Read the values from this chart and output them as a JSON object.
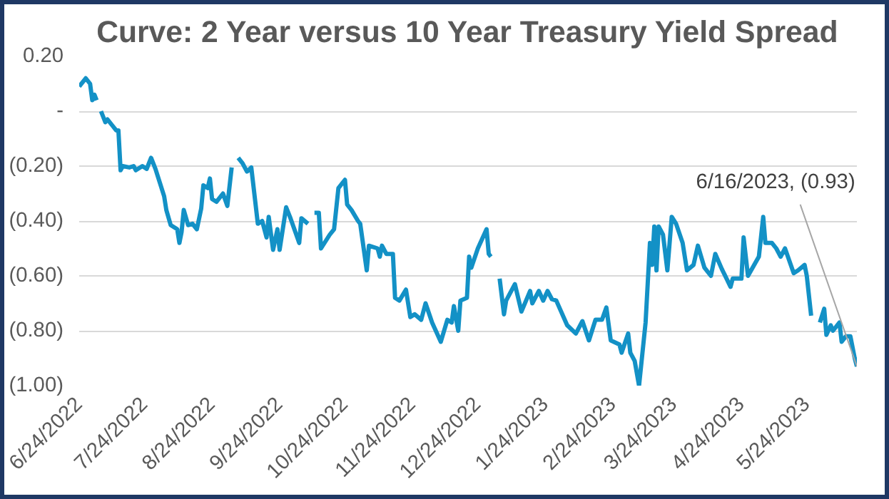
{
  "chart_data": {
    "type": "line",
    "title": "Curve: 2 Year versus 10 Year Treasury Yield Spread",
    "x": [
      "2022-06-24",
      "2022-06-27",
      "2022-06-29",
      "2022-06-30",
      "2022-07-01",
      "2022-07-02",
      "2022-07-03",
      "2022-07-04",
      "2022-07-06",
      "2022-07-07",
      "2022-07-09",
      "2022-07-11",
      "2022-07-12",
      "2022-07-13",
      "2022-07-14",
      "2022-07-17",
      "2022-07-19",
      "2022-07-20",
      "2022-07-23",
      "2022-07-25",
      "2022-07-27",
      "2022-07-29",
      "2022-08-02",
      "2022-08-03",
      "2022-08-05",
      "2022-08-08",
      "2022-08-09",
      "2022-08-10",
      "2022-08-11",
      "2022-08-13",
      "2022-08-15",
      "2022-08-17",
      "2022-08-19",
      "2022-08-20",
      "2022-08-22",
      "2022-08-23",
      "2022-08-24",
      "2022-08-26",
      "2022-08-29",
      "2022-08-31",
      "2022-09-02",
      "2022-09-03",
      "2022-09-05",
      "2022-09-07",
      "2022-09-09",
      "2022-09-11",
      "2022-09-14",
      "2022-09-16",
      "2022-09-18",
      "2022-09-19",
      "2022-09-21",
      "2022-09-23",
      "2022-09-24",
      "2022-09-27",
      "2022-09-29",
      "2022-10-03",
      "2022-10-04",
      "2022-10-07",
      "2022-10-08",
      "2022-10-10",
      "2022-10-12",
      "2022-10-13",
      "2022-10-17",
      "2022-10-19",
      "2022-10-21",
      "2022-10-24",
      "2022-10-25",
      "2022-10-27",
      "2022-10-30",
      "2022-10-31",
      "2022-11-03",
      "2022-11-04",
      "2022-11-08",
      "2022-11-09",
      "2022-11-10",
      "2022-11-12",
      "2022-11-15",
      "2022-11-16",
      "2022-11-18",
      "2022-11-21",
      "2022-11-23",
      "2022-11-25",
      "2022-11-28",
      "2022-11-30",
      "2022-12-03",
      "2022-12-07",
      "2022-12-10",
      "2022-12-12",
      "2022-12-13",
      "2022-12-15",
      "2022-12-16",
      "2022-12-19",
      "2022-12-20",
      "2022-12-21",
      "2022-12-24",
      "2022-12-28",
      "2022-12-29",
      "2022-12-30",
      "2023-01-01",
      "2023-01-03",
      "2023-01-05",
      "2023-01-06",
      "2023-01-10",
      "2023-01-13",
      "2023-01-17",
      "2023-01-18",
      "2023-01-21",
      "2023-01-23",
      "2023-01-25",
      "2023-01-27",
      "2023-01-29",
      "2023-02-03",
      "2023-02-07",
      "2023-02-10",
      "2023-02-13",
      "2023-02-16",
      "2023-02-19",
      "2023-02-21",
      "2023-02-23",
      "2023-02-27",
      "2023-02-28",
      "2023-03-03",
      "2023-03-04",
      "2023-03-06",
      "2023-03-08",
      "2023-03-11",
      "2023-03-13",
      "2023-03-14",
      "2023-03-15",
      "2023-03-16",
      "2023-03-17",
      "2023-03-19",
      "2023-03-21",
      "2023-03-23",
      "2023-03-25",
      "2023-03-28",
      "2023-03-30",
      "2023-04-02",
      "2023-04-04",
      "2023-04-07",
      "2023-04-10",
      "2023-04-12",
      "2023-04-15",
      "2023-04-19",
      "2023-04-20",
      "2023-04-24",
      "2023-04-25",
      "2023-04-27",
      "2023-05-02",
      "2023-05-04",
      "2023-05-05",
      "2023-05-08",
      "2023-05-10",
      "2023-05-12",
      "2023-05-14",
      "2023-05-18",
      "2023-05-20",
      "2023-05-23",
      "2023-05-24",
      "2023-05-26",
      "2023-05-28",
      "2023-05-30",
      "2023-06-01",
      "2023-06-02",
      "2023-06-04",
      "2023-06-05",
      "2023-06-08",
      "2023-06-09",
      "2023-06-11",
      "2023-06-13",
      "2023-06-15",
      "2023-06-16"
    ],
    "series": [
      {
        "color": "#1391c6",
        "values": [
          0.09,
          0.12,
          0.1,
          0.04,
          0.06,
          0.04,
          null,
          0.0,
          -0.04,
          -0.03,
          -0.05,
          -0.07,
          -0.07,
          -0.215,
          -0.2,
          -0.205,
          -0.2,
          -0.215,
          -0.2,
          -0.21,
          -0.17,
          -0.21,
          -0.31,
          -0.36,
          -0.415,
          -0.43,
          -0.48,
          -0.44,
          -0.36,
          -0.415,
          -0.41,
          -0.43,
          -0.355,
          -0.27,
          -0.28,
          -0.245,
          -0.32,
          -0.33,
          -0.3,
          -0.345,
          -0.205,
          null,
          -0.17,
          -0.19,
          -0.22,
          -0.205,
          -0.41,
          -0.4,
          -0.46,
          -0.385,
          -0.505,
          -0.43,
          -0.505,
          -0.35,
          -0.39,
          -0.48,
          -0.39,
          -0.41,
          null,
          -0.37,
          -0.37,
          -0.5,
          -0.45,
          -0.43,
          -0.28,
          -0.25,
          -0.34,
          -0.36,
          -0.4,
          -0.41,
          -0.58,
          -0.49,
          -0.5,
          -0.53,
          -0.49,
          -0.52,
          -0.52,
          -0.68,
          -0.69,
          -0.65,
          -0.75,
          -0.74,
          -0.76,
          -0.7,
          -0.77,
          -0.84,
          -0.76,
          -0.77,
          -0.71,
          -0.8,
          -0.69,
          -0.68,
          -0.53,
          -0.57,
          -0.5,
          -0.43,
          -0.52,
          -0.53,
          null,
          -0.61,
          -0.74,
          -0.69,
          -0.63,
          -0.73,
          -0.655,
          -0.7,
          -0.655,
          -0.69,
          -0.655,
          -0.685,
          -0.69,
          -0.78,
          -0.81,
          -0.765,
          -0.835,
          -0.76,
          -0.76,
          -0.715,
          -0.835,
          -0.85,
          -0.88,
          -0.81,
          -0.88,
          -0.91,
          -1.0,
          -0.77,
          -0.48,
          -0.56,
          -0.42,
          -0.58,
          -0.42,
          -0.45,
          -0.58,
          -0.385,
          -0.41,
          -0.48,
          -0.58,
          -0.56,
          -0.49,
          -0.57,
          -0.6,
          -0.52,
          -0.575,
          -0.64,
          -0.61,
          -0.61,
          -0.46,
          -0.6,
          -0.53,
          -0.385,
          -0.48,
          -0.48,
          -0.5,
          -0.53,
          -0.5,
          -0.59,
          -0.58,
          -0.56,
          -0.6,
          -0.745,
          null,
          -0.77,
          -0.72,
          -0.815,
          -0.78,
          -0.8,
          -0.77,
          -0.84,
          -0.82,
          -0.82,
          -0.9,
          -0.93
        ]
      }
    ],
    "xlim": [
      "2022-06-24",
      "2023-06-16"
    ],
    "xticks": [
      {
        "value": "2022-06-24",
        "label": "6/24/2022"
      },
      {
        "value": "2022-07-24",
        "label": "7/24/2022"
      },
      {
        "value": "2022-08-24",
        "label": "8/24/2022"
      },
      {
        "value": "2022-09-24",
        "label": "9/24/2022"
      },
      {
        "value": "2022-10-24",
        "label": "10/24/2022"
      },
      {
        "value": "2022-11-24",
        "label": "11/24/2022"
      },
      {
        "value": "2022-12-24",
        "label": "12/24/2022"
      },
      {
        "value": "2023-01-24",
        "label": "1/24/2023"
      },
      {
        "value": "2023-02-24",
        "label": "2/24/2023"
      },
      {
        "value": "2023-03-24",
        "label": "3/24/2023"
      },
      {
        "value": "2023-04-24",
        "label": "4/24/2023"
      },
      {
        "value": "2023-05-24",
        "label": "5/24/2023"
      }
    ],
    "ylim": [
      -1.0,
      0.2
    ],
    "yticks": [
      {
        "value": 0.2,
        "label": "0.20"
      },
      {
        "value": 0,
        "label": "-"
      },
      {
        "value": -0.2,
        "label": "(0.20)"
      },
      {
        "value": -0.4,
        "label": "(0.40)"
      },
      {
        "value": -0.6,
        "label": "(0.60)"
      },
      {
        "value": -0.8,
        "label": "(0.80)"
      },
      {
        "value": -1.0,
        "label": "(1.00)"
      }
    ],
    "grid": "y",
    "annotations": [
      {
        "text": "6/16/2023,  (0.93)",
        "x": "2023-06-16",
        "y": -0.93
      }
    ]
  }
}
